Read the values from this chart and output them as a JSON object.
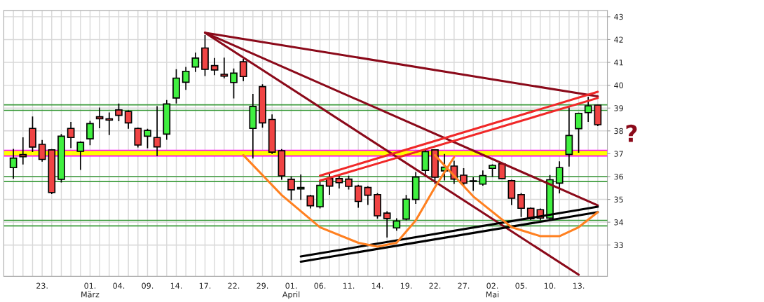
{
  "chart_data": {
    "type": "candlestick",
    "categories": [
      null,
      null,
      null,
      "23.",
      null,
      null,
      null,
      null,
      "01.\nMärz",
      null,
      null,
      "04.",
      null,
      null,
      "09.",
      null,
      null,
      "14.",
      null,
      null,
      "17.",
      null,
      null,
      "22.",
      null,
      null,
      "29.",
      null,
      null,
      "01.\nApril",
      null,
      null,
      "06.",
      null,
      null,
      "11.",
      null,
      null,
      "14.",
      null,
      null,
      "19.",
      null,
      null,
      "22.",
      null,
      null,
      "27.",
      null,
      null,
      "02.\nMai",
      null,
      null,
      "05.",
      null,
      null,
      "10.",
      null,
      null,
      "13.",
      null,
      null
    ],
    "ohlc": [
      [
        36.39,
        37.21,
        35.91,
        36.81
      ],
      [
        36.96,
        37.72,
        36.53,
        36.87
      ],
      [
        38.11,
        38.63,
        37.07,
        37.29
      ],
      [
        37.41,
        37.6,
        36.65,
        36.75
      ],
      [
        37.17,
        37.2,
        35.23,
        35.3
      ],
      [
        35.88,
        37.86,
        35.74,
        37.77
      ],
      [
        38.11,
        38.39,
        37.25,
        37.71
      ],
      [
        37.11,
        37.54,
        36.29,
        37.5
      ],
      [
        37.65,
        38.44,
        37.37,
        38.32
      ],
      [
        38.62,
        39.02,
        38.12,
        38.53
      ],
      [
        38.53,
        38.81,
        37.82,
        38.47
      ],
      [
        38.92,
        39.2,
        38.42,
        38.68
      ],
      [
        38.85,
        38.9,
        38.09,
        38.35
      ],
      [
        38.11,
        38.15,
        37.27,
        37.38
      ],
      [
        37.77,
        38.09,
        37.24,
        38.02
      ],
      [
        37.71,
        39.08,
        36.9,
        37.3
      ],
      [
        37.86,
        39.35,
        37.61,
        39.18
      ],
      [
        39.44,
        40.7,
        39.2,
        40.31
      ],
      [
        40.13,
        40.8,
        39.8,
        40.61
      ],
      [
        40.8,
        41.43,
        40.58,
        41.19
      ],
      [
        41.63,
        42.2,
        40.4,
        40.7
      ],
      [
        40.86,
        41.19,
        40.44,
        40.67
      ],
      [
        40.48,
        41.21,
        40.3,
        40.4
      ],
      [
        40.12,
        40.73,
        39.42,
        40.53
      ],
      [
        41.03,
        41.16,
        40.18,
        40.38
      ],
      [
        38.11,
        39.62,
        36.79,
        39.07
      ],
      [
        39.94,
        40.04,
        38.14,
        38.35
      ],
      [
        38.5,
        38.72,
        36.99,
        37.07
      ],
      [
        37.13,
        37.2,
        35.86,
        36.03
      ],
      [
        35.88,
        36.01,
        34.96,
        35.42
      ],
      [
        35.46,
        36.09,
        34.98,
        35.52
      ],
      [
        35.15,
        35.2,
        34.6,
        34.72
      ],
      [
        34.68,
        35.79,
        34.6,
        35.61
      ],
      [
        35.91,
        36.14,
        35.2,
        35.58
      ],
      [
        35.91,
        36.04,
        35.48,
        35.73
      ],
      [
        35.89,
        36.04,
        35.43,
        35.57
      ],
      [
        35.58,
        35.64,
        34.63,
        34.91
      ],
      [
        35.52,
        35.58,
        34.76,
        35.18
      ],
      [
        35.21,
        35.28,
        34.16,
        34.28
      ],
      [
        34.4,
        34.48,
        33.33,
        34.16
      ],
      [
        33.75,
        34.17,
        33.63,
        34.05
      ],
      [
        34.14,
        35.19,
        34.08,
        35.01
      ],
      [
        35.0,
        36.2,
        34.8,
        35.98
      ],
      [
        36.27,
        37.19,
        35.98,
        37.09
      ],
      [
        37.17,
        37.19,
        35.68,
        35.97
      ],
      [
        36.25,
        36.99,
        35.83,
        36.41
      ],
      [
        36.46,
        36.69,
        35.68,
        35.89
      ],
      [
        36.06,
        36.37,
        35.58,
        35.71
      ],
      [
        35.81,
        35.97,
        35.38,
        35.79
      ],
      [
        35.67,
        36.27,
        35.6,
        36.04
      ],
      [
        36.36,
        36.54,
        35.98,
        36.49
      ],
      [
        36.56,
        36.59,
        35.89,
        35.91
      ],
      [
        35.82,
        35.86,
        34.75,
        35.05
      ],
      [
        35.21,
        35.28,
        34.23,
        34.61
      ],
      [
        34.61,
        34.65,
        34.1,
        34.15
      ],
      [
        34.55,
        34.6,
        34.08,
        34.18
      ],
      [
        34.18,
        36.07,
        34.1,
        35.86
      ],
      [
        35.71,
        36.67,
        35.26,
        36.39
      ],
      [
        36.97,
        39.03,
        36.44,
        37.8
      ],
      [
        38.1,
        38.8,
        37.04,
        38.77
      ],
      [
        38.8,
        39.5,
        38.39,
        39.1
      ],
      [
        39.13,
        39.15,
        38.21,
        38.27
      ]
    ],
    "colors": [
      "#40f040",
      "#f04444",
      "#f04444",
      "#f04444",
      "#f04444",
      "#40f040",
      "#f04444",
      "#40f040",
      "#40f040",
      "#f04444",
      "#f04444",
      "#f04444",
      "#f04444",
      "#f04444",
      "#40f040",
      "#f04444",
      "#40f040",
      "#40f040",
      "#40f040",
      "#40f040",
      "#f04444",
      "#f04444",
      "#f04444",
      "#40f040",
      "#f04444",
      "#40f040",
      "#f04444",
      "#f04444",
      "#f04444",
      "#f04444",
      "#40f040",
      "#f04444",
      "#40f040",
      "#f04444",
      "#f04444",
      "#f04444",
      "#f04444",
      "#f04444",
      "#f04444",
      "#f04444",
      "#40f040",
      "#40f040",
      "#40f040",
      "#40f040",
      "#f04444",
      "#40f040",
      "#f04444",
      "#f04444",
      "#000000",
      "#40f040",
      "#40f040",
      "#f04444",
      "#f04444",
      "#f04444",
      "#f04444",
      "#f04444",
      "#40f040",
      "#40f040",
      "#40f040",
      "#40f040",
      "#40f040",
      "#f04444"
    ],
    "ylim": [
      31.63,
      43.27
    ],
    "yticks": [
      33,
      34,
      35,
      36,
      37,
      38,
      39,
      40,
      41,
      42,
      43
    ],
    "grid": true,
    "series": [
      {
        "type": "line",
        "color": "#8b0a1a",
        "values": [
          null,
          null,
          null,
          null,
          null,
          null,
          null,
          null,
          null,
          null,
          null,
          null,
          null,
          null,
          null,
          null,
          null,
          null,
          null,
          null,
          42.3,
          null,
          null,
          null,
          null,
          null,
          null,
          null,
          null,
          null,
          null,
          null,
          null,
          null,
          null,
          null,
          null,
          null,
          null,
          null,
          null,
          null,
          null,
          null,
          null,
          null,
          null,
          null,
          null,
          null,
          null,
          null,
          null,
          null,
          null,
          null,
          null,
          null,
          null,
          null,
          null,
          39.51
        ]
      },
      {
        "type": "line",
        "color": "#8b0a1a",
        "values": [
          null,
          null,
          null,
          null,
          null,
          null,
          null,
          null,
          null,
          null,
          null,
          null,
          null,
          null,
          null,
          null,
          null,
          null,
          null,
          null,
          42.3,
          null,
          null,
          null,
          null,
          null,
          null,
          null,
          null,
          null,
          null,
          null,
          null,
          null,
          null,
          null,
          null,
          null,
          null,
          null,
          null,
          null,
          null,
          null,
          null,
          null,
          null,
          null,
          null,
          null,
          null,
          null,
          null,
          null,
          null,
          null,
          null,
          null,
          null,
          null,
          null,
          34.74
        ]
      },
      {
        "type": "line",
        "color": "#8b0a1a",
        "values": [
          null,
          null,
          null,
          null,
          null,
          null,
          null,
          null,
          null,
          null,
          null,
          null,
          null,
          null,
          null,
          null,
          null,
          null,
          null,
          null,
          42.3,
          null,
          null,
          null,
          null,
          null,
          null,
          null,
          null,
          null,
          null,
          null,
          null,
          null,
          null,
          null,
          null,
          null,
          null,
          null,
          null,
          null,
          null,
          null,
          null,
          null,
          null,
          null,
          null,
          null,
          null,
          null,
          null,
          null,
          null,
          null,
          null,
          null,
          null,
          31.7,
          null,
          null
        ]
      },
      {
        "type": "line",
        "color": "#f02828",
        "values": [
          null,
          null,
          null,
          null,
          null,
          null,
          null,
          null,
          null,
          null,
          null,
          null,
          null,
          null,
          null,
          null,
          null,
          null,
          null,
          null,
          null,
          null,
          null,
          null,
          null,
          null,
          null,
          null,
          null,
          null,
          null,
          null,
          36.04,
          null,
          null,
          null,
          null,
          null,
          null,
          null,
          null,
          null,
          null,
          null,
          null,
          null,
          null,
          null,
          null,
          null,
          null,
          null,
          null,
          null,
          null,
          null,
          null,
          null,
          null,
          null,
          null,
          39.71
        ]
      },
      {
        "type": "line",
        "color": "#f02828",
        "values": [
          null,
          null,
          null,
          null,
          null,
          null,
          null,
          null,
          null,
          null,
          null,
          null,
          null,
          null,
          null,
          null,
          null,
          null,
          null,
          null,
          null,
          null,
          null,
          null,
          null,
          null,
          null,
          null,
          null,
          null,
          null,
          null,
          35.82,
          null,
          null,
          null,
          null,
          null,
          null,
          null,
          null,
          null,
          null,
          null,
          null,
          null,
          null,
          null,
          null,
          null,
          null,
          null,
          null,
          null,
          null,
          null,
          null,
          null,
          null,
          null,
          null,
          39.44
        ]
      },
      {
        "type": "line",
        "color": "#000000",
        "values": [
          null,
          null,
          null,
          null,
          null,
          null,
          null,
          null,
          null,
          null,
          null,
          null,
          null,
          null,
          null,
          null,
          null,
          null,
          null,
          null,
          null,
          null,
          null,
          null,
          null,
          null,
          null,
          null,
          null,
          null,
          32.27,
          null,
          null,
          null,
          null,
          null,
          null,
          null,
          null,
          null,
          null,
          null,
          null,
          null,
          null,
          null,
          null,
          null,
          null,
          null,
          null,
          null,
          null,
          null,
          null,
          null,
          null,
          null,
          null,
          null,
          null,
          34.44
        ]
      },
      {
        "type": "line",
        "color": "#000000",
        "values": [
          null,
          null,
          null,
          null,
          null,
          null,
          null,
          null,
          null,
          null,
          null,
          null,
          null,
          null,
          null,
          null,
          null,
          null,
          null,
          null,
          null,
          null,
          null,
          null,
          null,
          null,
          null,
          null,
          null,
          null,
          32.5,
          null,
          null,
          null,
          null,
          null,
          null,
          null,
          null,
          null,
          null,
          null,
          null,
          null,
          null,
          null,
          null,
          null,
          null,
          null,
          null,
          null,
          null,
          null,
          null,
          null,
          null,
          null,
          null,
          null,
          null,
          34.68
        ]
      },
      {
        "type": "line",
        "color": "#ff8020",
        "values": [
          null,
          null,
          null,
          null,
          null,
          null,
          null,
          null,
          null,
          null,
          null,
          null,
          null,
          null,
          null,
          null,
          null,
          null,
          null,
          null,
          null,
          null,
          null,
          null,
          36.94,
          null,
          null,
          null,
          35.19,
          null,
          null,
          null,
          33.78,
          null,
          null,
          null,
          33.1,
          null,
          32.93,
          null,
          33.1,
          null,
          34.08,
          null,
          35.53,
          null,
          36.85,
          null,
          null,
          null,
          null,
          null,
          null,
          null,
          null,
          null,
          null,
          null,
          null,
          null,
          null,
          null
        ]
      },
      {
        "type": "line",
        "color": "#ff8020",
        "values": [
          null,
          null,
          null,
          null,
          null,
          null,
          null,
          null,
          null,
          null,
          null,
          null,
          null,
          null,
          null,
          null,
          null,
          null,
          null,
          null,
          null,
          null,
          null,
          null,
          null,
          null,
          null,
          null,
          null,
          null,
          null,
          null,
          null,
          null,
          null,
          null,
          null,
          null,
          null,
          null,
          null,
          null,
          null,
          null,
          36.94,
          null,
          null,
          null,
          35.13,
          null,
          null,
          null,
          33.78,
          null,
          null,
          33.39,
          null,
          33.39,
          null,
          33.78,
          null,
          34.44
        ]
      }
    ],
    "ref_lines": [
      {
        "axis": "y",
        "value": 39.14,
        "color": "#3a9a3a"
      },
      {
        "axis": "y",
        "value": 38.9,
        "color": "#3a9a3a"
      },
      {
        "axis": "y",
        "value": 36.0,
        "color": "#3a9a3a"
      },
      {
        "axis": "y",
        "value": 35.79,
        "color": "#3a9a3a"
      },
      {
        "axis": "y",
        "value": 34.08,
        "color": "#3a9a3a"
      },
      {
        "axis": "y",
        "value": 33.84,
        "color": "#3a9a3a"
      },
      {
        "axis": "y",
        "value": 37.15,
        "color": "#ff00ff"
      },
      {
        "axis": "y",
        "value": 36.9,
        "color": "#ff00ff"
      }
    ],
    "bands": [
      {
        "axis": "y",
        "from": 36.9,
        "to": 37.15,
        "color": "#ffff00"
      }
    ],
    "annotations": [
      "?"
    ]
  }
}
